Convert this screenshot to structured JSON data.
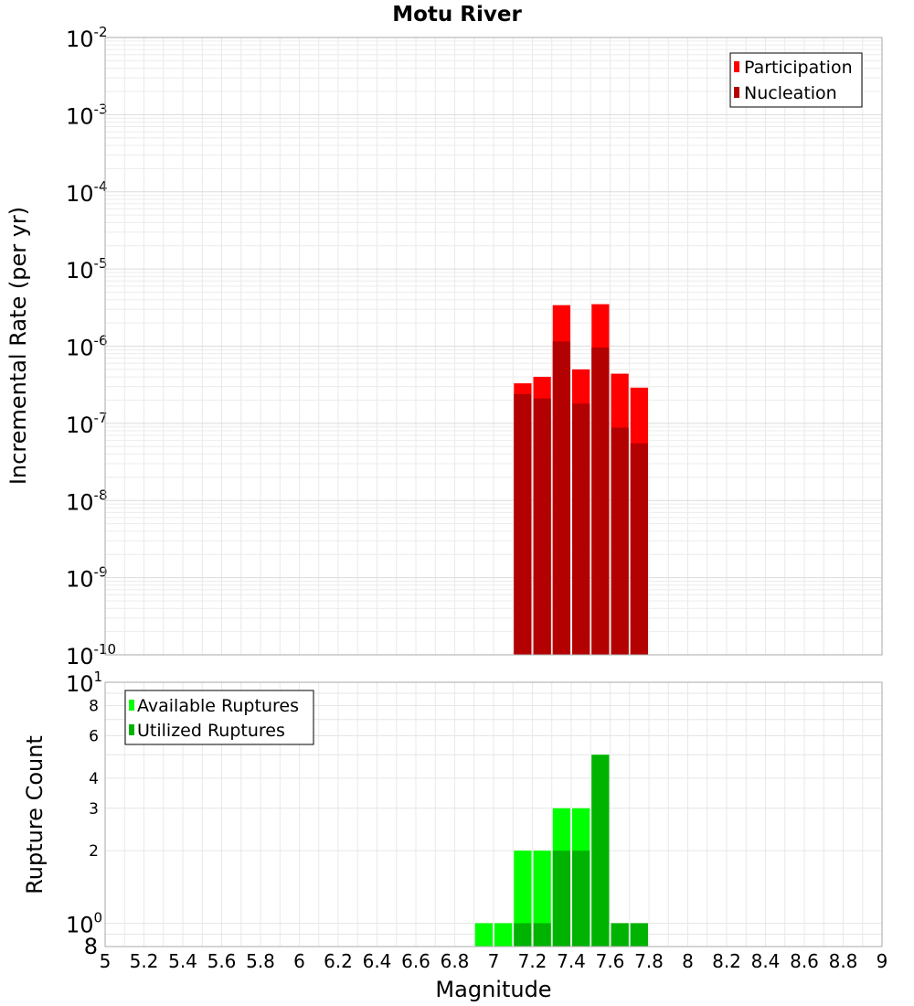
{
  "chart_data": [
    {
      "type": "bar",
      "title": "Motu River",
      "xlabel": "",
      "ylabel": "Incremental Rate (per yr)",
      "y_scale": "log",
      "ylim": [
        1e-10,
        0.01
      ],
      "xlim": [
        5,
        9
      ],
      "grid": true,
      "legend_position": "top-right",
      "y_tick_labels": [
        {
          "base": "10",
          "exp": "-2"
        },
        {
          "base": "10",
          "exp": "-3"
        },
        {
          "base": "10",
          "exp": "-4"
        },
        {
          "base": "10",
          "exp": "-5"
        },
        {
          "base": "10",
          "exp": "-6"
        },
        {
          "base": "10",
          "exp": "-7"
        },
        {
          "base": "10",
          "exp": "-8"
        },
        {
          "base": "10",
          "exp": "-9"
        },
        {
          "base": "10",
          "exp": "-10"
        }
      ],
      "series": [
        {
          "name": "Participation",
          "color": "#ff0000",
          "x": [
            7.1,
            7.2,
            7.3,
            7.4,
            7.5,
            7.6,
            7.7
          ],
          "values": [
            3.3e-07,
            4e-07,
            3.4e-06,
            5e-07,
            3.5e-06,
            4.4e-07,
            2.9e-07
          ]
        },
        {
          "name": "Nucleation",
          "color": "#b30000",
          "x": [
            7.1,
            7.2,
            7.3,
            7.4,
            7.5,
            7.6,
            7.7
          ],
          "values": [
            2.4e-07,
            2.1e-07,
            1.15e-06,
            1.8e-07,
            9.6e-07,
            8.8e-08,
            5.5e-08
          ]
        }
      ]
    },
    {
      "type": "bar",
      "xlabel": "Magnitude",
      "ylabel": "Rupture Count",
      "y_scale": "log",
      "ylim": [
        0.8,
        10
      ],
      "xlim": [
        5,
        9
      ],
      "grid": true,
      "legend_position": "top-left",
      "x_tick_labels": [
        "5",
        "5.2",
        "5.4",
        "5.6",
        "5.8",
        "6",
        "6.2",
        "6.4",
        "6.6",
        "6.8",
        "7",
        "7.2",
        "7.4",
        "7.6",
        "7.8",
        "8",
        "8.2",
        "8.4",
        "8.6",
        "8.8",
        "9"
      ],
      "y_tick_labels_small": [
        "8",
        "6",
        "4",
        "3",
        "2"
      ],
      "y_tick_labels_power": [
        {
          "base": "10",
          "exp": "1"
        },
        {
          "base": "10",
          "exp": "0"
        }
      ],
      "y_tick_bottom": "8",
      "series": [
        {
          "name": "Available Ruptures",
          "color": "#00ff00",
          "x": [
            6.9,
            7.0,
            7.1,
            7.2,
            7.3,
            7.4,
            7.5,
            7.6,
            7.7
          ],
          "values": [
            1,
            1,
            2,
            2,
            3,
            3,
            5,
            1,
            1
          ]
        },
        {
          "name": "Utilized Ruptures",
          "color": "#00b300",
          "x": [
            7.1,
            7.2,
            7.3,
            7.4,
            7.5,
            7.6,
            7.7
          ],
          "values": [
            1,
            1,
            2,
            2,
            5,
            1,
            1
          ]
        }
      ]
    }
  ]
}
